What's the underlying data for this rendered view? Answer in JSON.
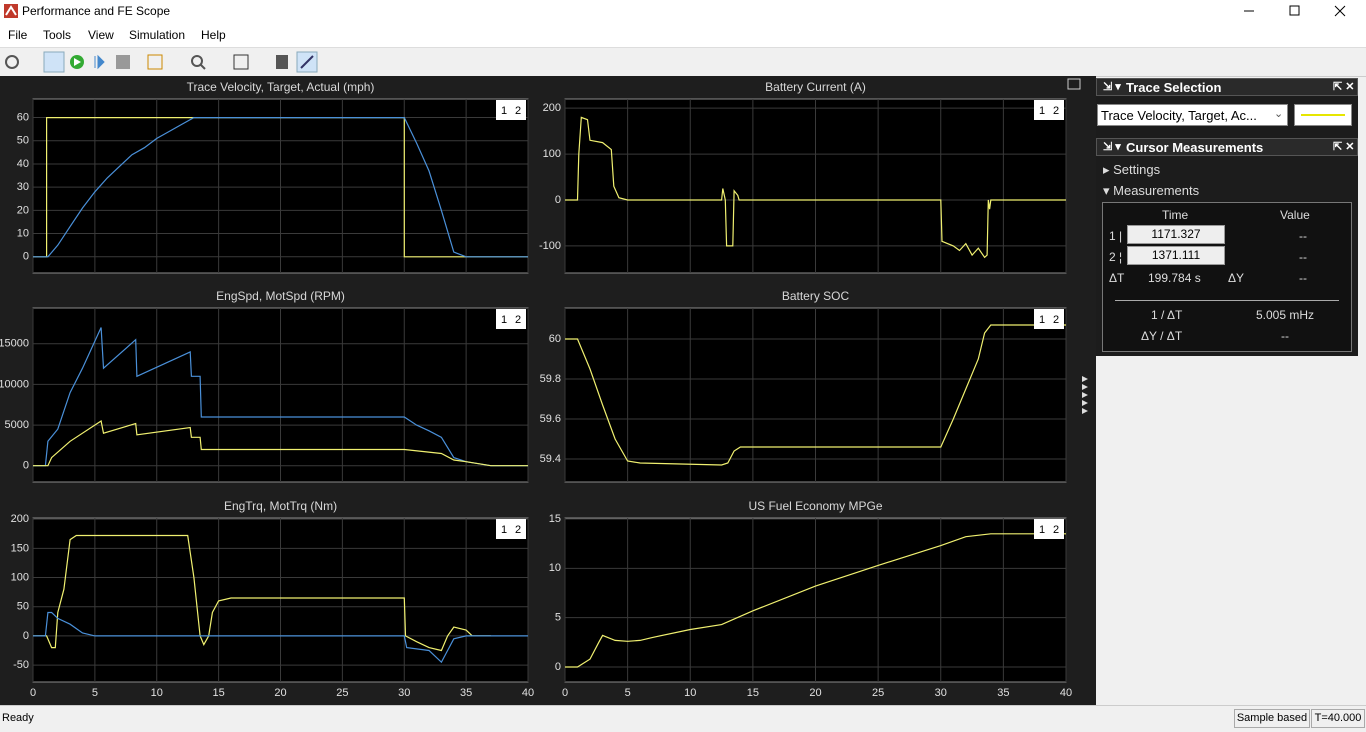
{
  "window": {
    "title": "Performance and FE Scope"
  },
  "menu": [
    "File",
    "Tools",
    "View",
    "Simulation",
    "Help"
  ],
  "chart_data": [
    {
      "type": "line",
      "title": "Trace Velocity, Target, Actual (mph)",
      "cursor_labels": [
        "1",
        "2"
      ],
      "xlim": [
        0,
        40
      ],
      "xticks": [
        0,
        5,
        10,
        15,
        20,
        25,
        30,
        35,
        40
      ],
      "xticklabels": false,
      "ylim": [
        -7,
        68
      ],
      "yticks": [
        0,
        10,
        20,
        30,
        40,
        50,
        60
      ],
      "grid": true,
      "series": [
        {
          "color": "#f0f070",
          "x": [
            0,
            1.1,
            1.1,
            30,
            30,
            40
          ],
          "values": [
            0,
            0,
            60,
            60,
            0,
            0
          ]
        },
        {
          "color": "#4a90d9",
          "x": [
            0,
            1.2,
            2,
            3,
            4,
            5,
            6,
            7,
            8,
            9,
            10,
            11,
            12,
            13,
            14,
            30,
            31,
            32,
            33,
            34,
            35,
            40
          ],
          "values": [
            0,
            0,
            5,
            13,
            21,
            28,
            34,
            39,
            44,
            47,
            51,
            54,
            57,
            60,
            60,
            60,
            49,
            37,
            20,
            2,
            0,
            0
          ]
        }
      ]
    },
    {
      "type": "line",
      "title": "Battery Current (A)",
      "cursor_labels": [
        "1",
        "2"
      ],
      "xlim": [
        0,
        40
      ],
      "xticks": [
        0,
        5,
        10,
        15,
        20,
        25,
        30,
        35,
        40
      ],
      "xticklabels": false,
      "ylim": [
        -159,
        220
      ],
      "yticks": [
        -100,
        0,
        100,
        200
      ],
      "grid": true,
      "series": [
        {
          "color": "#f0f070",
          "x": [
            0,
            1,
            1.1,
            1.3,
            1.8,
            2,
            3,
            3.7,
            3.9,
            4.3,
            5,
            12.5,
            12.6,
            12.8,
            12.9,
            13.4,
            13.5,
            13.8,
            13.9,
            30,
            30.1,
            31,
            31.5,
            32,
            32.5,
            33,
            33.5,
            33.7,
            33.8,
            33.9,
            34,
            40
          ],
          "values": [
            0,
            0,
            100,
            180,
            175,
            130,
            125,
            110,
            30,
            5,
            0,
            0,
            25,
            0,
            -100,
            -100,
            20,
            10,
            0,
            0,
            -90,
            -100,
            -110,
            -95,
            -120,
            -105,
            -125,
            -120,
            0,
            -20,
            0,
            0
          ]
        }
      ]
    },
    {
      "type": "line",
      "title": "EngSpd, MotSpd (RPM)",
      "cursor_labels": [
        "1",
        "2"
      ],
      "xlim": [
        0,
        40
      ],
      "xticks": [
        0,
        5,
        10,
        15,
        20,
        25,
        30,
        35,
        40
      ],
      "xticklabels": false,
      "ylim": [
        -2000,
        19400
      ],
      "yticks": [
        0,
        5000,
        10000,
        15000
      ],
      "grid": true,
      "series": [
        {
          "color": "#4a90d9",
          "x": [
            0,
            1,
            1.2,
            2,
            3,
            4,
            5.5,
            5.7,
            8.3,
            8.4,
            12.7,
            12.8,
            13.5,
            13.6,
            30,
            31,
            32,
            33,
            34,
            35,
            37,
            40
          ],
          "values": [
            0,
            0,
            3000,
            4500,
            9000,
            12000,
            17000,
            12000,
            15500,
            11000,
            14000,
            11000,
            11000,
            6000,
            6000,
            5000,
            4300,
            3500,
            1000,
            500,
            0,
            0
          ]
        },
        {
          "color": "#f0f070",
          "x": [
            0,
            1.2,
            1.5,
            3,
            5.5,
            5.7,
            8.3,
            8.4,
            12.7,
            12.8,
            13.5,
            13.6,
            30,
            33,
            34,
            35,
            37,
            40
          ],
          "values": [
            0,
            0,
            1000,
            3000,
            5500,
            4000,
            5200,
            3800,
            4700,
            3500,
            3500,
            2000,
            2000,
            1500,
            700,
            500,
            0,
            0
          ]
        }
      ]
    },
    {
      "type": "line",
      "title": "Battery SOC",
      "cursor_labels": [
        "1",
        "2"
      ],
      "xlim": [
        0,
        40
      ],
      "xticks": [
        0,
        5,
        10,
        15,
        20,
        25,
        30,
        35,
        40
      ],
      "xticklabels": false,
      "ylim": [
        59.285,
        60.155
      ],
      "yticks": [
        59.4,
        59.6,
        59.8,
        60
      ],
      "grid": true,
      "series": [
        {
          "color": "#f0f070",
          "x": [
            0,
            1,
            2,
            3,
            4,
            5,
            6,
            12.5,
            13,
            13.5,
            14,
            30,
            31,
            32,
            33,
            33.5,
            34,
            40
          ],
          "values": [
            60,
            60,
            59.85,
            59.67,
            59.5,
            59.39,
            59.38,
            59.37,
            59.38,
            59.44,
            59.46,
            59.46,
            59.6,
            59.75,
            59.9,
            60.03,
            60.07,
            60.07
          ]
        }
      ]
    },
    {
      "type": "line",
      "title": "EngTrq, MotTrq (Nm)",
      "cursor_labels": [
        "1",
        "2"
      ],
      "xlim": [
        0,
        40
      ],
      "xticks": [
        0,
        5,
        10,
        15,
        20,
        25,
        30,
        35,
        40
      ],
      "xticklabels": true,
      "ylim": [
        -79,
        202
      ],
      "yticks": [
        -50,
        0,
        50,
        100,
        150,
        200
      ],
      "grid": true,
      "series": [
        {
          "color": "#f0f070",
          "x": [
            0,
            1.1,
            1.5,
            1.8,
            2,
            2.5,
            3,
            3.5,
            12.5,
            13,
            13.5,
            13.8,
            14.2,
            14.5,
            15,
            16,
            30,
            30.1,
            31,
            32,
            33,
            33.5,
            34,
            35,
            35.5,
            37
          ],
          "values": [
            0,
            0,
            -20,
            -20,
            40,
            80,
            165,
            172,
            172,
            100,
            0,
            -15,
            0,
            40,
            60,
            65,
            65,
            0,
            -10,
            -20,
            -25,
            0,
            15,
            10,
            0,
            0
          ]
        },
        {
          "color": "#4a90d9",
          "x": [
            0,
            1,
            1.2,
            1.5,
            2,
            3,
            4,
            5,
            30,
            30.2,
            32,
            33,
            33.5,
            34,
            35,
            40
          ],
          "values": [
            0,
            0,
            40,
            40,
            30,
            20,
            5,
            0,
            0,
            -20,
            -25,
            -45,
            -25,
            -5,
            0,
            0
          ]
        }
      ]
    },
    {
      "type": "line",
      "title": "US Fuel Economy MPGe",
      "cursor_labels": [
        "1",
        "2"
      ],
      "xlim": [
        0,
        40
      ],
      "xticks": [
        0,
        5,
        10,
        15,
        20,
        25,
        30,
        35,
        40
      ],
      "xticklabels": true,
      "ylim": [
        -1.52,
        15.1
      ],
      "yticks": [
        0,
        5,
        10,
        15
      ],
      "grid": true,
      "series": [
        {
          "color": "#f0f070",
          "x": [
            0,
            1,
            2,
            2.7,
            3,
            4,
            5,
            6,
            7,
            10,
            12.5,
            15,
            20,
            25,
            30,
            32,
            34,
            40
          ],
          "values": [
            0,
            0,
            0.8,
            2.5,
            3.2,
            2.7,
            2.6,
            2.7,
            3.0,
            3.8,
            4.3,
            5.7,
            8.2,
            10.3,
            12.3,
            13.2,
            13.5,
            13.5
          ]
        }
      ]
    }
  ],
  "trace_selection": {
    "title": "Trace Selection",
    "selected": "Trace Velocity, Target, Ac..."
  },
  "cursor_measurements": {
    "title": "Cursor Measurements",
    "settings": "Settings",
    "measurements": "Measurements",
    "headers": [
      "Time",
      "Value"
    ],
    "rows": [
      {
        "label": "1",
        "time": "1171.327",
        "value": "--"
      },
      {
        "label": "2",
        "time": "1371.111",
        "value": "--"
      }
    ],
    "delta_t_label": "ΔT",
    "delta_t": "199.784 s",
    "delta_y_label": "ΔY",
    "delta_y": "--",
    "inv_dt_label": "1 / ΔT",
    "inv_dt": "5.005 mHz",
    "dy_dt_label": "ΔY / ΔT",
    "dy_dt": "--"
  },
  "status": {
    "left": "Ready",
    "mode": "Sample based",
    "time": "T=40.000"
  }
}
